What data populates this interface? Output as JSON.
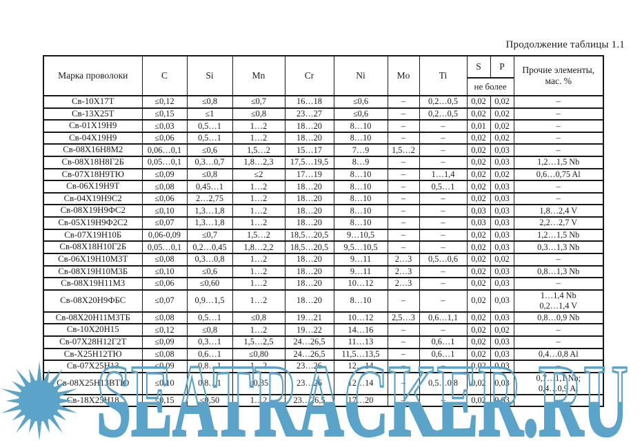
{
  "page": {
    "caption": "Продолжение таблицы 1.1"
  },
  "table": {
    "headers": {
      "marka": "Марка проволоки",
      "c": "C",
      "si": "Si",
      "mn": "Mn",
      "cr": "Cr",
      "ni": "Ni",
      "mo": "Mo",
      "ti": "Ti",
      "s": "S",
      "p": "P",
      "limit": "не более",
      "other": "Прочие элементы, мас. %"
    },
    "columns": [
      "marka",
      "c",
      "si",
      "mn",
      "cr",
      "ni",
      "mo",
      "ti",
      "s",
      "p",
      "other"
    ],
    "rows": [
      {
        "marka": "Св-10Х17Т",
        "c": "≤0,12",
        "si": "≤0,8",
        "mn": "≤0,7",
        "cr": "16…18",
        "ni": "≤0,6",
        "mo": "–",
        "ti": "0,2…0,5",
        "s": "0,02",
        "p": "0,02",
        "other": "–"
      },
      {
        "marka": "Св-13Х25Т",
        "c": "≤0,15",
        "si": "≤1",
        "mn": "≤0,8",
        "cr": "23…27",
        "ni": "≤0,6",
        "mo": "–",
        "ti": "0,2…0,5",
        "s": "0,02",
        "p": "0,02",
        "other": "–"
      },
      {
        "marka": "Св-01Х19Н9",
        "c": "≤0,03",
        "si": "0,5…1",
        "mn": "1…2",
        "cr": "18…20",
        "ni": "8…10",
        "mo": "–",
        "ti": "–",
        "s": "0,01",
        "p": "0,02",
        "other": "–"
      },
      {
        "marka": "Св-04Х19Н9",
        "c": "≤0,06",
        "si": "0,5…1",
        "mn": "1…2",
        "cr": "18…20",
        "ni": "8…10",
        "mo": "–",
        "ti": "–",
        "s": "0,02",
        "p": "0,02",
        "other": "–"
      },
      {
        "marka": "Св-08Х16Н8М2",
        "c": "0,06…0,1",
        "si": "≤0,6",
        "mn": "1,5…2",
        "cr": "15…17",
        "ni": "7…9",
        "mo": "1,5…2",
        "ti": "–",
        "s": "0,02",
        "p": "0,03",
        "other": "–"
      },
      {
        "marka": "Св-08Х18Н8Г2Б",
        "c": "0,05…0,1",
        "si": "0,3…0,7",
        "mn": "1,8…2,3",
        "cr": "17,5…19,5",
        "ni": "8…9",
        "mo": "–",
        "ti": "–",
        "s": "0,02",
        "p": "0,03",
        "other": "1,2…1,5 Nb"
      },
      {
        "marka": "Св-07Х18Н9ТЮ",
        "c": "≤0,09",
        "si": "≤0,8",
        "mn": "≤2",
        "cr": "17…19",
        "ni": "8…10",
        "mo": "–",
        "ti": "1…1,4",
        "s": "0,02",
        "p": "0,02",
        "other": "0,6…0,75 Al"
      },
      {
        "marka": "Св-06Х19Н9Т",
        "c": "≤0,08",
        "si": "0,45…1",
        "mn": "1…2",
        "cr": "18…20",
        "ni": "8…10",
        "mo": "–",
        "ti": "0,5…1",
        "s": "0,02",
        "p": "0,03",
        "other": "–"
      },
      {
        "marka": "Св-04Х19Н9С2",
        "c": "≤0,06",
        "si": "2…2,75",
        "mn": "1…2",
        "cr": "18…20",
        "ni": "8…10",
        "mo": "–",
        "ti": "–",
        "s": "0,02",
        "p": "0,03",
        "other": "–"
      },
      {
        "marka": "Св-08Х19Н9ФС2",
        "c": "≤0,10",
        "si": "1,3…1,8",
        "mn": "1…2",
        "cr": "18…20",
        "ni": "8…10",
        "mo": "–",
        "ti": "–",
        "s": "0,03",
        "p": "0,03",
        "other": "1,8…2,4 V"
      },
      {
        "marka": "Св-05Х19Н9Ф2С2",
        "c": "≤0,07",
        "si": "1,3…1,8",
        "mn": "1…2",
        "cr": "18…20",
        "ni": "8…10",
        "mo": "–",
        "ti": "–",
        "s": "0,03",
        "p": "0,03",
        "other": "2,2…2,7 V"
      },
      {
        "marka": "Св-07Х19Н10Б",
        "c": "0,06-0,09",
        "si": "≤0,7",
        "mn": "1,5…2",
        "cr": "18,5…20,5",
        "ni": "9…10,5",
        "mo": "–",
        "ti": "–",
        "s": "0,02",
        "p": "0,03",
        "other": "1,2…1,5 Nb"
      },
      {
        "marka": "Св-08Х18Н10Г2Б",
        "c": "0,05…0,1",
        "si": "0,2…0,45",
        "mn": "1,8…2,2",
        "cr": "18,5…20,5",
        "ni": "9,5…10,5",
        "mo": "–",
        "ti": "–",
        "s": "0,02",
        "p": "0,03",
        "other": "0,3…1,3 Nb"
      },
      {
        "marka": "Св-06Х19Н10М3Т",
        "c": "≤0,08",
        "si": "0,3…0,8",
        "mn": "1…2",
        "cr": "18…20",
        "ni": "9…11",
        "mo": "2…3",
        "ti": "0,5…0,6",
        "s": "0,02",
        "p": "0,02",
        "other": "–"
      },
      {
        "marka": "Св-08Х19Н10М3Б",
        "c": "≤0,10",
        "si": "≤0,6",
        "mn": "1…2",
        "cr": "18…20",
        "ni": "9…11",
        "mo": "2…3",
        "ti": "–",
        "s": "0,02",
        "p": "0,03",
        "other": "0,8…1,3 Nb"
      },
      {
        "marka": "Св-08Х19Н11М3",
        "c": "≤0,06",
        "si": "≤0,60",
        "mn": "1…2",
        "cr": "18…20",
        "ni": "10…12",
        "mo": "2…3",
        "ti": "–",
        "s": "0,02",
        "p": "0,03",
        "other": "–"
      },
      {
        "marka": "Св-08Х20Н9ФБС",
        "c": "≤0,07",
        "si": "0,9…1,5",
        "mn": "1…2",
        "cr": "18…20",
        "ni": "8…10",
        "mo": "–",
        "ti": "–",
        "s": "0,02",
        "p": "0,03",
        "other": "1…1,4 Nb\n0,2…1,4 V"
      },
      {
        "marka": "Св-08Х20Н11М3ТБ",
        "c": "≤0,08",
        "si": "0,5…1",
        "mn": "≤0,8",
        "cr": "19…21",
        "ni": "10…12",
        "mo": "2,5…3",
        "ti": "0,6…1,1",
        "s": "0,02",
        "p": "0,03",
        "other": "0,8…0,9 Nb"
      },
      {
        "marka": "Св-10Х20Н15",
        "c": "≤0,12",
        "si": "≤0,8",
        "mn": "1…2",
        "cr": "19…22",
        "ni": "14…16",
        "mo": "–",
        "ti": "–",
        "s": "0,02",
        "p": "0,02",
        "other": "–"
      },
      {
        "marka": "Св-07Х28Н12Г2Т",
        "c": "≤0,09",
        "si": "0,3…1",
        "mn": "1,5…2,5",
        "cr": "24…26,5",
        "ni": "11…13",
        "mo": "–",
        "ti": "0,6…1",
        "s": "0,02",
        "p": "0,03",
        "other": "–"
      },
      {
        "marka": "Св-Х25Н12ТЮ",
        "c": "≤0,08",
        "si": "0,6…1",
        "mn": "≤0,80",
        "cr": "24…26,5",
        "ni": "11,5…13,5",
        "mo": "–",
        "ti": "0,6…1",
        "s": "0,02",
        "p": "0,03",
        "other": "0,4…0,8 Al"
      },
      {
        "marka": "Св-07Х25Н13",
        "c": "≤0,09",
        "si": "0,8…1",
        "mn": "1…2",
        "cr": "23…26",
        "ni": "12…14",
        "mo": "–",
        "ti": "–",
        "s": "0,02",
        "p": "0,03",
        "other": "–"
      },
      {
        "marka": "Св-08Х25Н13ВТЮ",
        "c": "≤0,10",
        "si": "0,8…1",
        "mn": "≤0,35",
        "cr": "23…26",
        "ni": "12…14",
        "mo": "–",
        "ti": "0,5…0,8",
        "s": "0,02",
        "p": "0,03",
        "other": "0,7…1,1 Nb;\n0,4…0,9 Al"
      },
      {
        "marka": "Св-18Х25Н18",
        "c": "≤0,15",
        "si": "≤0,50",
        "mn": "1…2",
        "cr": "23…26,5",
        "ni": "17…20",
        "mo": "–",
        "ti": "–",
        "s": "0,02",
        "p": "0,03",
        "other": "–"
      }
    ]
  },
  "watermark": {
    "text": "SEATRACKER.RU",
    "color": "#5ba3c9"
  }
}
